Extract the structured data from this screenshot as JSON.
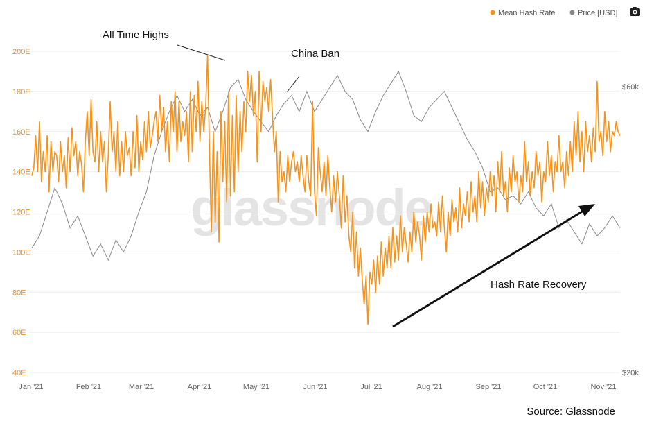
{
  "chart_data": {
    "type": "line",
    "watermark": "glassnode",
    "legend": [
      {
        "label": "Mean Hash Rate",
        "color": "#f7931a"
      },
      {
        "label": "Price [USD]",
        "color": "#888888"
      }
    ],
    "x_labels": [
      "Jan '21",
      "Feb '21",
      "Mar '21",
      "Apr '21",
      "May '21",
      "Jun '21",
      "Jul '21",
      "Aug '21",
      "Sep '21",
      "Oct '21",
      "Nov '21"
    ],
    "y_left": {
      "ticks": [
        "40E",
        "60E",
        "80E",
        "100E",
        "120E",
        "140E",
        "160E",
        "180E",
        "200E"
      ],
      "range": [
        40,
        200
      ]
    },
    "y_right": {
      "ticks": [
        "$20k",
        "$60k"
      ]
    },
    "series": [
      {
        "name": "Mean Hash Rate",
        "color": "#f7931a",
        "points": [
          [
            0,
            138
          ],
          [
            1,
            142
          ],
          [
            2,
            158
          ],
          [
            3,
            140
          ],
          [
            4,
            165
          ],
          [
            5,
            135
          ],
          [
            6,
            150
          ],
          [
            7,
            140
          ],
          [
            8,
            158
          ],
          [
            9,
            130
          ],
          [
            10,
            155
          ],
          [
            11,
            140
          ],
          [
            12,
            150
          ],
          [
            13,
            148
          ],
          [
            14,
            135
          ],
          [
            15,
            155
          ],
          [
            16,
            140
          ],
          [
            17,
            148
          ],
          [
            18,
            132
          ],
          [
            19,
            157
          ],
          [
            20,
            140
          ],
          [
            21,
            162
          ],
          [
            22,
            148
          ],
          [
            23,
            155
          ],
          [
            24,
            138
          ],
          [
            25,
            150
          ],
          [
            26,
            144
          ],
          [
            27,
            130
          ],
          [
            28,
            155
          ],
          [
            29,
            170
          ],
          [
            30,
            148
          ],
          [
            31,
            176
          ],
          [
            32,
            150
          ],
          [
            33,
            145
          ],
          [
            34,
            165
          ],
          [
            35,
            140
          ],
          [
            36,
            160
          ],
          [
            37,
            145
          ],
          [
            38,
            155
          ],
          [
            39,
            130
          ],
          [
            40,
            148
          ],
          [
            41,
            175
          ],
          [
            42,
            150
          ],
          [
            43,
            160
          ],
          [
            44,
            140
          ],
          [
            45,
            165
          ],
          [
            46,
            138
          ],
          [
            47,
            155
          ],
          [
            48,
            140
          ],
          [
            49,
            160
          ],
          [
            50,
            148
          ],
          [
            51,
            152
          ],
          [
            52,
            138
          ],
          [
            53,
            160
          ],
          [
            54,
            142
          ],
          [
            55,
            168
          ],
          [
            56,
            140
          ],
          [
            57,
            155
          ],
          [
            58,
            146
          ],
          [
            59,
            165
          ],
          [
            60,
            150
          ],
          [
            61,
            170
          ],
          [
            62,
            152
          ],
          [
            63,
            158
          ],
          [
            64,
            165
          ],
          [
            65,
            170
          ],
          [
            66,
            155
          ],
          [
            67,
            178
          ],
          [
            68,
            160
          ],
          [
            69,
            172
          ],
          [
            70,
            150
          ],
          [
            71,
            165
          ],
          [
            72,
            145
          ],
          [
            73,
            175
          ],
          [
            74,
            160
          ],
          [
            75,
            180
          ],
          [
            76,
            150
          ],
          [
            77,
            175
          ],
          [
            78,
            155
          ],
          [
            79,
            165
          ],
          [
            80,
            158
          ],
          [
            81,
            170
          ],
          [
            82,
            145
          ],
          [
            83,
            180
          ],
          [
            84,
            150
          ],
          [
            85,
            178
          ],
          [
            86,
            160
          ],
          [
            87,
            185
          ],
          [
            88,
            155
          ],
          [
            89,
            175
          ],
          [
            90,
            160
          ],
          [
            91,
            172
          ],
          [
            92,
            198
          ],
          [
            93,
            150
          ],
          [
            94,
            110
          ],
          [
            95,
            160
          ],
          [
            96,
            115
          ],
          [
            97,
            150
          ],
          [
            98,
            105
          ],
          [
            99,
            170
          ],
          [
            100,
            135
          ],
          [
            101,
            165
          ],
          [
            102,
            125
          ],
          [
            103,
            180
          ],
          [
            104,
            128
          ],
          [
            105,
            168
          ],
          [
            106,
            130
          ],
          [
            107,
            178
          ],
          [
            108,
            140
          ],
          [
            109,
            170
          ],
          [
            110,
            150
          ],
          [
            111,
            175
          ],
          [
            112,
            160
          ],
          [
            113,
            190
          ],
          [
            114,
            175
          ],
          [
            115,
            188
          ],
          [
            116,
            168
          ],
          [
            117,
            180
          ],
          [
            118,
            145
          ],
          [
            119,
            190
          ],
          [
            120,
            160
          ],
          [
            121,
            185
          ],
          [
            122,
            175
          ],
          [
            123,
            182
          ],
          [
            124,
            170
          ],
          [
            125,
            186
          ],
          [
            126,
            168
          ],
          [
            127,
            150
          ],
          [
            128,
            160
          ],
          [
            129,
            125
          ],
          [
            130,
            150
          ],
          [
            131,
            135
          ],
          [
            132,
            140
          ],
          [
            133,
            130
          ],
          [
            134,
            148
          ],
          [
            135,
            135
          ],
          [
            136,
            145
          ],
          [
            137,
            150
          ],
          [
            138,
            140
          ],
          [
            139,
            145
          ],
          [
            140,
            135
          ],
          [
            141,
            148
          ],
          [
            142,
            138
          ],
          [
            143,
            130
          ],
          [
            144,
            148
          ],
          [
            145,
            135
          ],
          [
            146,
            128
          ],
          [
            147,
            175
          ],
          [
            148,
            130
          ],
          [
            149,
            118
          ],
          [
            150,
            152
          ],
          [
            151,
            140
          ],
          [
            152,
            130
          ],
          [
            153,
            145
          ],
          [
            154,
            128
          ],
          [
            155,
            148
          ],
          [
            156,
            132
          ],
          [
            157,
            120
          ],
          [
            158,
            138
          ],
          [
            159,
            125
          ],
          [
            160,
            140
          ],
          [
            161,
            128
          ],
          [
            162,
            112
          ],
          [
            163,
            138
          ],
          [
            164,
            115
          ],
          [
            165,
            128
          ],
          [
            166,
            108
          ],
          [
            167,
            100
          ],
          [
            168,
            120
          ],
          [
            169,
            92
          ],
          [
            170,
            110
          ],
          [
            171,
            88
          ],
          [
            172,
            102
          ],
          [
            173,
            86
          ],
          [
            174,
            74
          ],
          [
            175,
            88
          ],
          [
            176,
            64
          ],
          [
            177,
            90
          ],
          [
            178,
            84
          ],
          [
            179,
            96
          ],
          [
            180,
            80
          ],
          [
            181,
            98
          ],
          [
            182,
            84
          ],
          [
            183,
            105
          ],
          [
            184,
            88
          ],
          [
            185,
            102
          ],
          [
            186,
            92
          ],
          [
            187,
            108
          ],
          [
            188,
            92
          ],
          [
            189,
            112
          ],
          [
            190,
            95
          ],
          [
            191,
            108
          ],
          [
            192,
            96
          ],
          [
            193,
            118
          ],
          [
            194,
            100
          ],
          [
            195,
            112
          ],
          [
            196,
            104
          ],
          [
            197,
            95
          ],
          [
            198,
            110
          ],
          [
            199,
            100
          ],
          [
            200,
            120
          ],
          [
            201,
            105
          ],
          [
            202,
            115
          ],
          [
            203,
            108
          ],
          [
            204,
            96
          ],
          [
            205,
            118
          ],
          [
            206,
            105
          ],
          [
            207,
            120
          ],
          [
            208,
            110
          ],
          [
            209,
            124
          ],
          [
            210,
            112
          ],
          [
            211,
            115
          ],
          [
            212,
            108
          ],
          [
            213,
            125
          ],
          [
            214,
            110
          ],
          [
            215,
            128
          ],
          [
            216,
            112
          ],
          [
            217,
            100
          ],
          [
            218,
            120
          ],
          [
            219,
            108
          ],
          [
            220,
            126
          ],
          [
            221,
            115
          ],
          [
            222,
            122
          ],
          [
            223,
            110
          ],
          [
            224,
            132
          ],
          [
            225,
            112
          ],
          [
            226,
            124
          ],
          [
            227,
            118
          ],
          [
            228,
            130
          ],
          [
            229,
            115
          ],
          [
            230,
            135
          ],
          [
            231,
            120
          ],
          [
            232,
            128
          ],
          [
            233,
            115
          ],
          [
            234,
            140
          ],
          [
            235,
            122
          ],
          [
            236,
            135
          ],
          [
            237,
            118
          ],
          [
            238,
            132
          ],
          [
            239,
            125
          ],
          [
            240,
            140
          ],
          [
            241,
            128
          ],
          [
            242,
            138
          ],
          [
            243,
            120
          ],
          [
            244,
            145
          ],
          [
            245,
            130
          ],
          [
            246,
            150
          ],
          [
            247,
            128
          ],
          [
            248,
            135
          ],
          [
            249,
            120
          ],
          [
            250,
            142
          ],
          [
            251,
            130
          ],
          [
            252,
            148
          ],
          [
            253,
            135
          ],
          [
            254,
            140
          ],
          [
            255,
            125
          ],
          [
            256,
            138
          ],
          [
            257,
            130
          ],
          [
            258,
            155
          ],
          [
            259,
            135
          ],
          [
            260,
            145
          ],
          [
            261,
            128
          ],
          [
            262,
            140
          ],
          [
            263,
            132
          ],
          [
            264,
            150
          ],
          [
            265,
            138
          ],
          [
            266,
            145
          ],
          [
            267,
            125
          ],
          [
            268,
            140
          ],
          [
            269,
            135
          ],
          [
            270,
            155
          ],
          [
            271,
            138
          ],
          [
            272,
            148
          ],
          [
            273,
            130
          ],
          [
            274,
            145
          ],
          [
            275,
            140
          ],
          [
            276,
            158
          ],
          [
            277,
            140
          ],
          [
            278,
            145
          ],
          [
            279,
            132
          ],
          [
            280,
            150
          ],
          [
            281,
            138
          ],
          [
            282,
            155
          ],
          [
            283,
            140
          ],
          [
            284,
            165
          ],
          [
            285,
            148
          ],
          [
            286,
            170
          ],
          [
            287,
            145
          ],
          [
            288,
            160
          ],
          [
            289,
            140
          ],
          [
            290,
            165
          ],
          [
            291,
            150
          ],
          [
            292,
            158
          ],
          [
            293,
            145
          ],
          [
            294,
            162
          ],
          [
            295,
            150
          ],
          [
            296,
            185
          ],
          [
            297,
            155
          ],
          [
            298,
            160
          ],
          [
            299,
            148
          ],
          [
            300,
            170
          ],
          [
            301,
            155
          ],
          [
            302,
            165
          ],
          [
            303,
            150
          ],
          [
            304,
            160
          ],
          [
            305,
            158
          ],
          [
            306,
            165
          ],
          [
            307,
            160
          ],
          [
            308,
            158
          ]
        ]
      },
      {
        "name": "Price [USD]",
        "color": "#888888",
        "points": []
      }
    ],
    "annotations": [
      "All Time Highs",
      "China Ban",
      "Hash Rate Recovery"
    ]
  },
  "toolbar": {
    "camera_icon": "camera-icon"
  },
  "source": "Source: Glassnode"
}
